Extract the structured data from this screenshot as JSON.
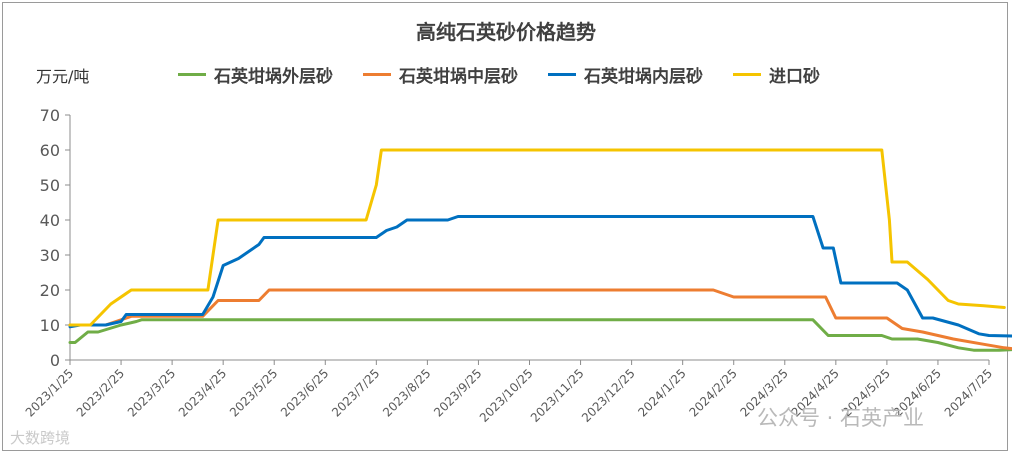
{
  "chart_data": {
    "type": "line",
    "title": "高纯石英砂价格趋势",
    "ylabel": "万元/吨",
    "ylim": [
      0,
      70
    ],
    "yticks": [
      0,
      10,
      20,
      30,
      40,
      50,
      60,
      70
    ],
    "grid": false,
    "legend_position": "top",
    "xtick_labels": [
      "2023/1/25",
      "2023/2/25",
      "2023/3/25",
      "2023/4/25",
      "2023/5/25",
      "2023/6/25",
      "2023/7/25",
      "2023/8/25",
      "2023/9/25",
      "2023/10/25",
      "2023/11/25",
      "2023/12/25",
      "2024/1/25",
      "2024/2/25",
      "2024/3/25",
      "2024/4/25",
      "2024/5/25",
      "2024/6/25",
      "2024/7/25"
    ],
    "series": [
      {
        "name": "石英坩埚外层砂",
        "color": "#70ad47",
        "points": [
          [
            0,
            5
          ],
          [
            0.1,
            5
          ],
          [
            0.35,
            8
          ],
          [
            0.55,
            8
          ],
          [
            1.0,
            10
          ],
          [
            1.3,
            11
          ],
          [
            1.4,
            11.5
          ],
          [
            13.0,
            11.5
          ],
          [
            14.0,
            11.5
          ],
          [
            14.25,
            11.5
          ],
          [
            14.55,
            11.5
          ],
          [
            14.85,
            7
          ],
          [
            15.3,
            7
          ],
          [
            15.9,
            7
          ],
          [
            16.1,
            6
          ],
          [
            16.6,
            6
          ],
          [
            17.0,
            5
          ],
          [
            17.4,
            3.5
          ],
          [
            17.7,
            2.8
          ],
          [
            18.2,
            2.8
          ],
          [
            18.5,
            3
          ]
        ]
      },
      {
        "name": "石英坩埚中层砂",
        "color": "#ed7d31",
        "points": [
          [
            0,
            10
          ],
          [
            0.3,
            10
          ],
          [
            0.7,
            10
          ],
          [
            1.0,
            11.5
          ],
          [
            1.2,
            12.5
          ],
          [
            2.2,
            12.5
          ],
          [
            2.6,
            12.5
          ],
          [
            2.9,
            17
          ],
          [
            3.7,
            17
          ],
          [
            3.9,
            20
          ],
          [
            12.6,
            20
          ],
          [
            13.0,
            18
          ],
          [
            14.5,
            18
          ],
          [
            14.8,
            18
          ],
          [
            15.0,
            12
          ],
          [
            15.5,
            12
          ],
          [
            16.0,
            12
          ],
          [
            16.1,
            11
          ],
          [
            16.3,
            9
          ],
          [
            16.7,
            8
          ],
          [
            17.3,
            6
          ],
          [
            17.9,
            4.5
          ],
          [
            18.3,
            3.5
          ],
          [
            18.6,
            3
          ]
        ]
      },
      {
        "name": "石英坩埚内层砂",
        "color": "#0070c0",
        "points": [
          [
            0,
            9.5
          ],
          [
            0.2,
            10
          ],
          [
            0.5,
            10
          ],
          [
            0.7,
            10
          ],
          [
            1.0,
            11
          ],
          [
            1.1,
            13
          ],
          [
            1.8,
            13
          ],
          [
            2.3,
            13
          ],
          [
            2.6,
            13
          ],
          [
            2.8,
            18
          ],
          [
            3.0,
            27
          ],
          [
            3.3,
            29
          ],
          [
            3.7,
            33
          ],
          [
            3.8,
            35
          ],
          [
            5.0,
            35
          ],
          [
            6.0,
            35
          ],
          [
            6.2,
            37
          ],
          [
            6.4,
            38
          ],
          [
            6.6,
            40
          ],
          [
            7.0,
            40
          ],
          [
            7.4,
            40
          ],
          [
            7.6,
            41
          ],
          [
            14.4,
            41
          ],
          [
            14.55,
            41
          ],
          [
            14.75,
            32
          ],
          [
            14.95,
            32
          ],
          [
            15.1,
            22
          ],
          [
            16.0,
            22
          ],
          [
            16.2,
            22
          ],
          [
            16.4,
            20
          ],
          [
            16.7,
            12
          ],
          [
            16.9,
            12
          ],
          [
            17.4,
            10
          ],
          [
            17.8,
            7.5
          ],
          [
            18.0,
            7
          ],
          [
            18.6,
            6.8
          ]
        ]
      },
      {
        "name": "进口砂",
        "color": "#f5c400",
        "points": [
          [
            0,
            10
          ],
          [
            0.4,
            10
          ],
          [
            0.8,
            16
          ],
          [
            1.2,
            20
          ],
          [
            1.5,
            20
          ],
          [
            2.0,
            20
          ],
          [
            2.5,
            20
          ],
          [
            2.7,
            20
          ],
          [
            2.9,
            40
          ],
          [
            4.0,
            40
          ],
          [
            5.0,
            40
          ],
          [
            5.8,
            40
          ],
          [
            6.0,
            50
          ],
          [
            6.1,
            60
          ],
          [
            15.5,
            60
          ],
          [
            15.9,
            60
          ],
          [
            16.05,
            40
          ],
          [
            16.1,
            28
          ],
          [
            16.4,
            28
          ],
          [
            16.8,
            23
          ],
          [
            17.2,
            17
          ],
          [
            17.4,
            16
          ],
          [
            17.9,
            15.5
          ],
          [
            18.3,
            15
          ]
        ]
      }
    ]
  },
  "watermark": {
    "left": "大数跨境",
    "right": "公众号 · 石英产业"
  }
}
